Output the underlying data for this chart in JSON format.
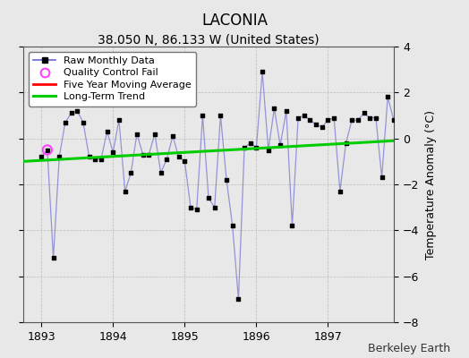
{
  "title": "LACONIA",
  "subtitle": "38.050 N, 86.133 W (United States)",
  "ylabel": "Temperature Anomaly (°C)",
  "attribution": "Berkeley Earth",
  "ylim": [
    -8,
    4
  ],
  "xlim": [
    1892.75,
    1897.92
  ],
  "xticks": [
    1893,
    1894,
    1895,
    1896,
    1897
  ],
  "yticks": [
    -8,
    -6,
    -4,
    -2,
    0,
    2,
    4
  ],
  "bg_color": "#e8e8e8",
  "plot_bg_color": "#e8e8e8",
  "raw_x": [
    1893.0,
    1893.083,
    1893.167,
    1893.25,
    1893.333,
    1893.417,
    1893.5,
    1893.583,
    1893.667,
    1893.75,
    1893.833,
    1893.917,
    1894.0,
    1894.083,
    1894.167,
    1894.25,
    1894.333,
    1894.417,
    1894.5,
    1894.583,
    1894.667,
    1894.75,
    1894.833,
    1894.917,
    1895.0,
    1895.083,
    1895.167,
    1895.25,
    1895.333,
    1895.417,
    1895.5,
    1895.583,
    1895.667,
    1895.75,
    1895.833,
    1895.917,
    1896.0,
    1896.083,
    1896.167,
    1896.25,
    1896.333,
    1896.417,
    1896.5,
    1896.583,
    1896.667,
    1896.75,
    1896.833,
    1896.917,
    1897.0,
    1897.083,
    1897.167,
    1897.25,
    1897.333,
    1897.417,
    1897.5,
    1897.583,
    1897.667,
    1897.75,
    1897.833,
    1897.917
  ],
  "raw_y": [
    -0.8,
    -0.5,
    -5.2,
    -0.8,
    0.7,
    1.1,
    1.2,
    0.7,
    -0.8,
    -0.9,
    -0.9,
    0.3,
    -0.6,
    0.8,
    -2.3,
    -1.5,
    0.2,
    -0.7,
    -0.7,
    0.2,
    -1.5,
    -0.9,
    0.1,
    -0.8,
    -1.0,
    -3.0,
    -3.1,
    1.0,
    -2.6,
    -3.0,
    1.0,
    -1.8,
    -3.8,
    -7.0,
    -0.4,
    -0.2,
    -0.4,
    2.9,
    -0.5,
    1.3,
    -0.3,
    1.2,
    -3.8,
    0.9,
    1.0,
    0.8,
    0.6,
    0.5,
    0.8,
    0.9,
    -2.3,
    -0.2,
    0.8,
    0.8,
    1.1,
    0.9,
    0.9,
    -1.7,
    1.8,
    0.8
  ],
  "qc_fail_x": [
    1893.083
  ],
  "qc_fail_y": [
    -0.5
  ],
  "trend_x": [
    1892.75,
    1897.92
  ],
  "trend_y": [
    -1.0,
    -0.1
  ],
  "line_color": "#6666cc",
  "line_alpha": 0.65,
  "dot_color": "#000000",
  "qc_color": "#ff44ff",
  "trend_color": "#00cc00",
  "moving_avg_color": "#ff0000",
  "grid_color": "#b0b0b0",
  "title_fontsize": 12,
  "subtitle_fontsize": 10,
  "label_fontsize": 9,
  "tick_fontsize": 9,
  "attribution_fontsize": 9
}
